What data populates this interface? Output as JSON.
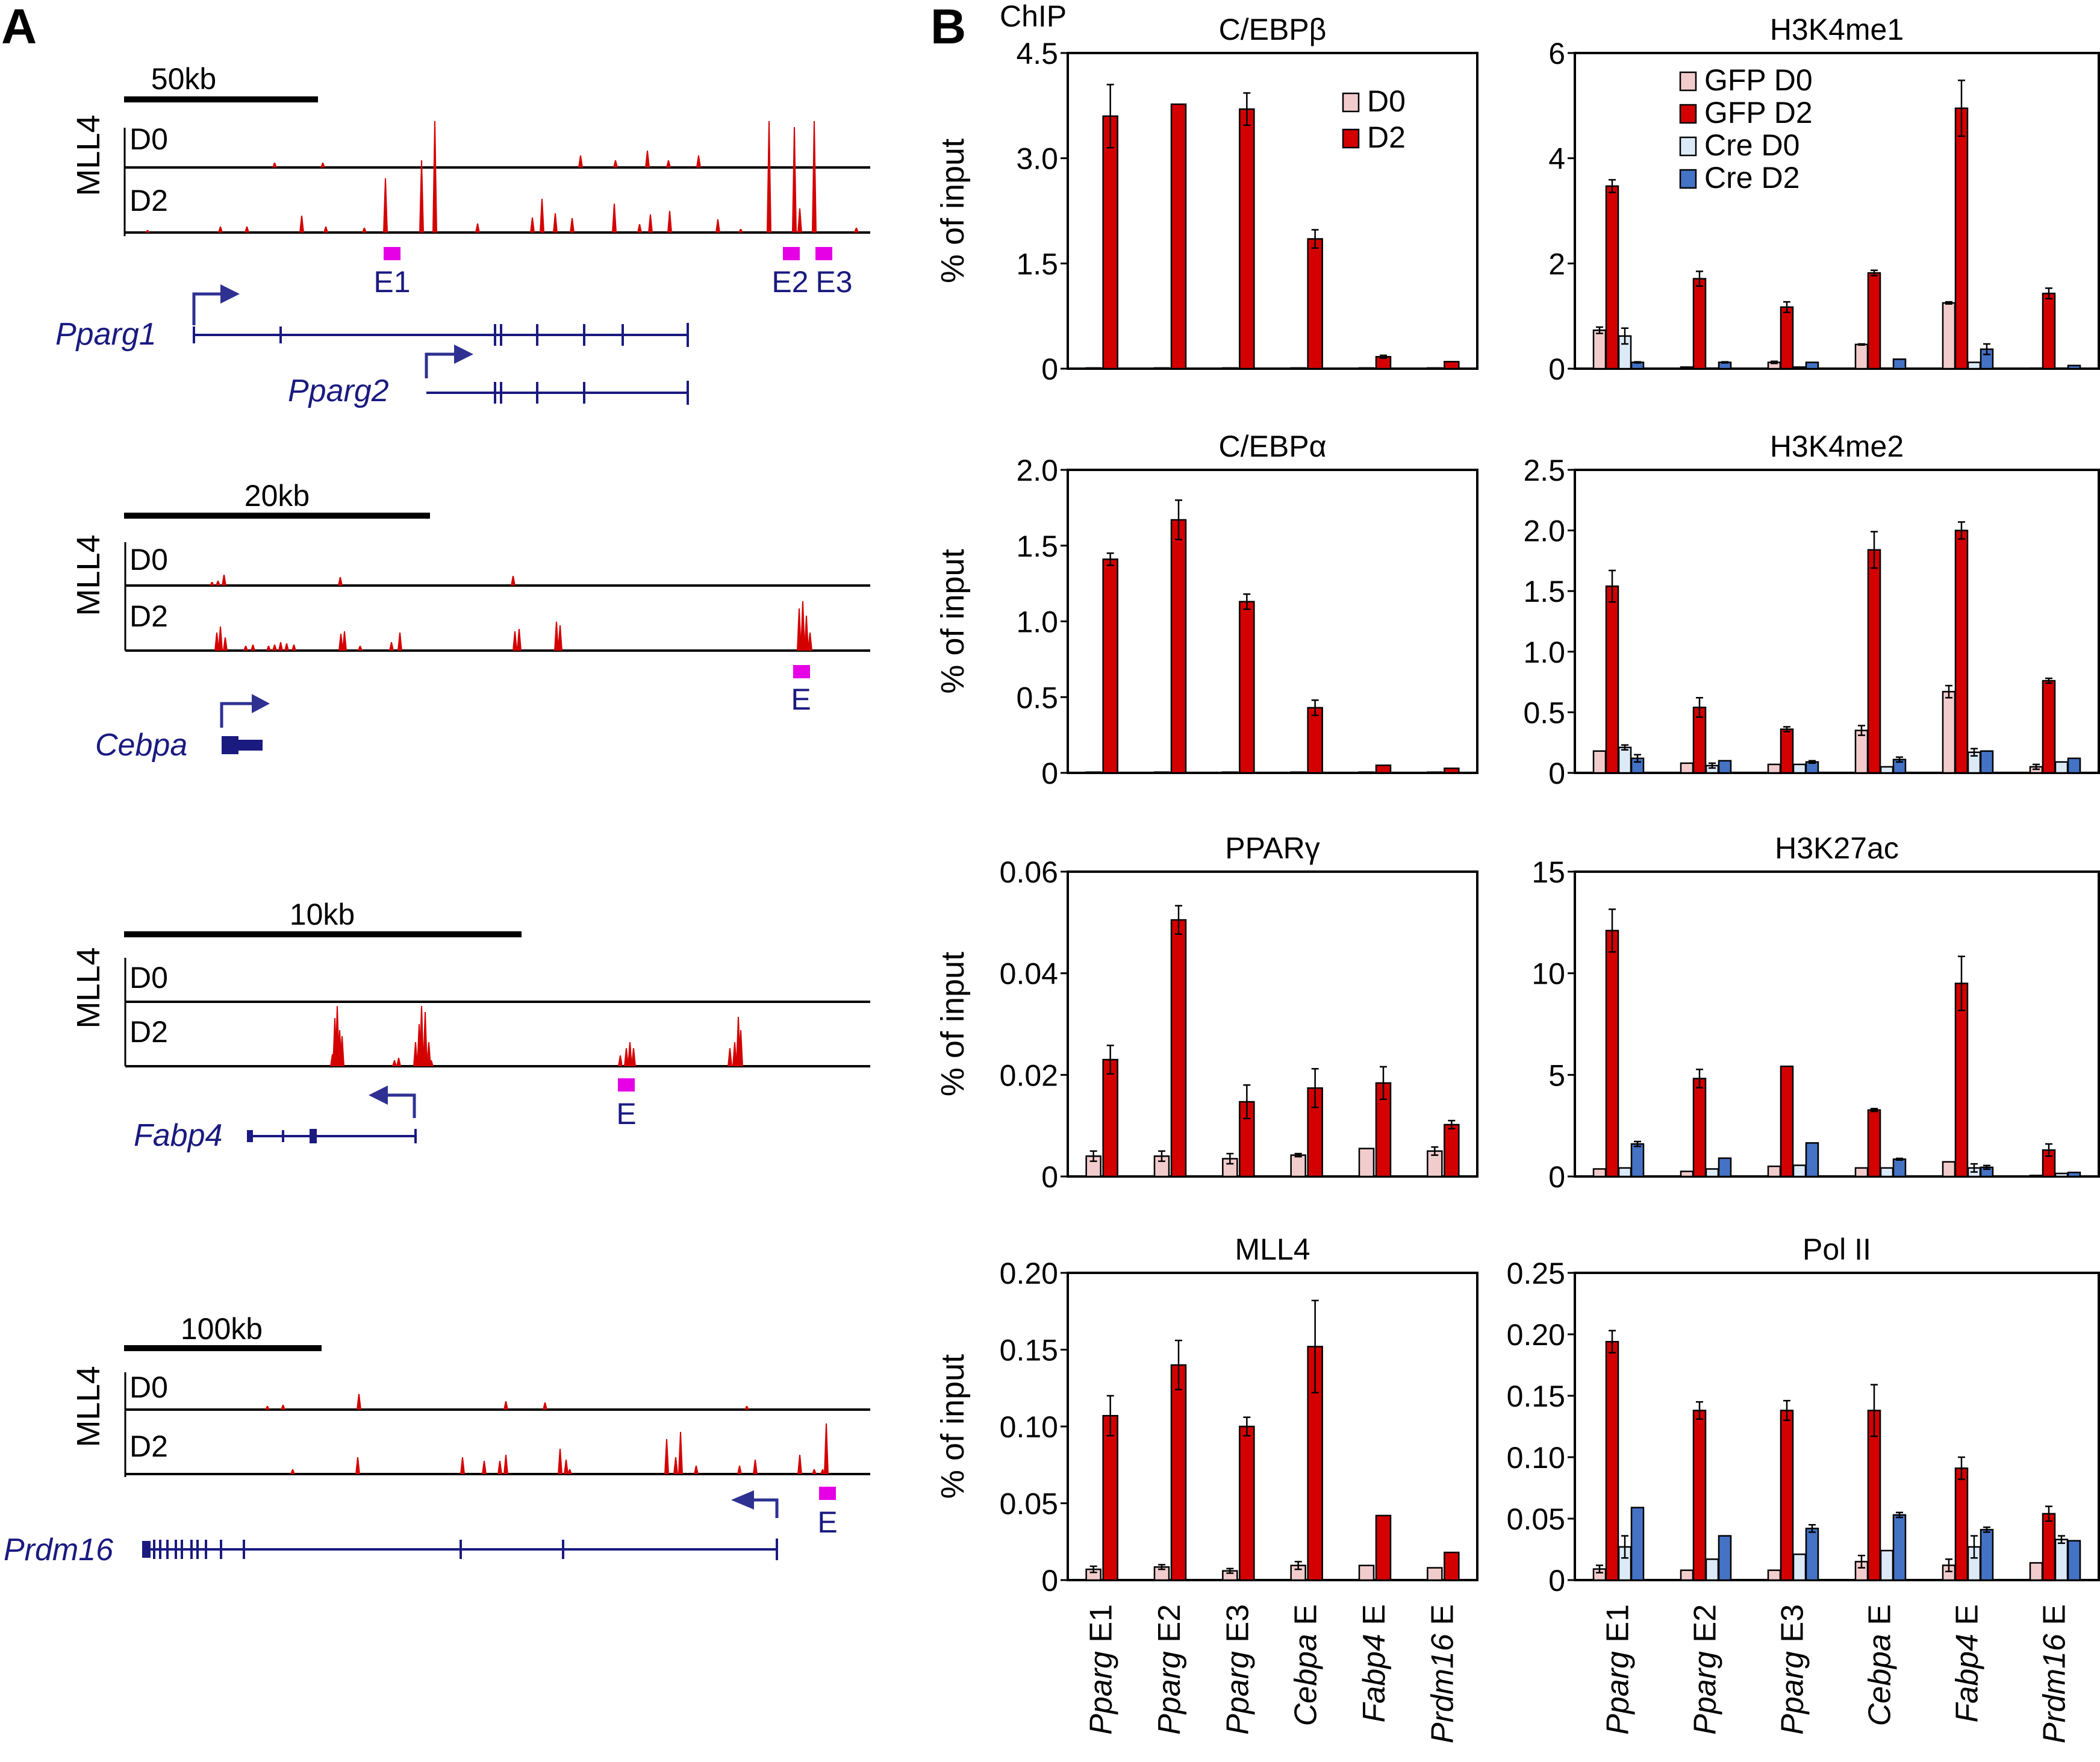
{
  "figure": {
    "panel_a_letter": "A",
    "panel_b_letter": "B",
    "panel_b_header": "ChIP"
  },
  "panel_a": {
    "mark_label": "MLL4",
    "tracks": [
      {
        "locus": "Pparg",
        "scale_label": "50kb",
        "rows": [
          "D0",
          "D2"
        ],
        "enhancers": [
          "E1",
          "E2",
          "E3"
        ],
        "genes": [
          {
            "name": "Pparg1",
            "strand": "+"
          },
          {
            "name": "Pparg2",
            "strand": "+"
          }
        ]
      },
      {
        "locus": "Cebpa",
        "scale_label": "20kb",
        "rows": [
          "D0",
          "D2"
        ],
        "enhancers": [
          "E"
        ],
        "genes": [
          {
            "name": "Cebpa",
            "strand": "+"
          }
        ]
      },
      {
        "locus": "Fabp4",
        "scale_label": "10kb",
        "rows": [
          "D0",
          "D2"
        ],
        "enhancers": [
          "E"
        ],
        "genes": [
          {
            "name": "Fabp4",
            "strand": "-"
          }
        ]
      },
      {
        "locus": "Prdm16",
        "scale_label": "100kb",
        "rows": [
          "D0",
          "D2"
        ],
        "enhancers": [
          "E"
        ],
        "genes": [
          {
            "name": "Prdm16",
            "strand": "-"
          }
        ]
      }
    ],
    "colors": {
      "signal": "#d40000",
      "enhancer": "#e600e6",
      "gene": "#1a1a80",
      "arrow": "#2e3192"
    }
  },
  "chart_data": [
    {
      "type": "bar",
      "title": "C/EBPβ",
      "ylabel": "% of input",
      "ylim": [
        0,
        4.5
      ],
      "yticks": [
        "0",
        "1.5",
        "3.0",
        "4.5"
      ],
      "ytick_values": [
        0,
        1.5,
        3.0,
        4.5
      ],
      "categories": [
        "Pparg E1",
        "Pparg E2",
        "Pparg E3",
        "Cebpa E",
        "Fabp4 E",
        "Prdm16 E"
      ],
      "legend_position": "top-right",
      "series": [
        {
          "name": "D0",
          "color": "#f2cccc",
          "values": [
            0.01,
            0.01,
            0.01,
            0.01,
            0.01,
            0.01
          ],
          "errors": [
            0,
            0,
            0,
            0,
            0,
            0
          ]
        },
        {
          "name": "D2",
          "color": "#d40000",
          "values": [
            3.6,
            3.77,
            3.7,
            1.85,
            0.17,
            0.1
          ],
          "errors": [
            0.45,
            0,
            0.23,
            0.13,
            0.02,
            0
          ]
        }
      ]
    },
    {
      "type": "bar",
      "title": "H3K4me1",
      "ylabel": "",
      "ylim": [
        0,
        6
      ],
      "yticks": [
        "0",
        "2",
        "4",
        "6"
      ],
      "ytick_values": [
        0,
        2,
        4,
        6
      ],
      "categories": [
        "Pparg E1",
        "Pparg E2",
        "Pparg E3",
        "Cebpa E",
        "Fabp4 E",
        "Prdm16 E"
      ],
      "legend_position": "top-center",
      "series": [
        {
          "name": "GFP D0",
          "color": "#f2cccc",
          "values": [
            0.73,
            0.03,
            0.12,
            0.46,
            1.25,
            0.01
          ],
          "errors": [
            0.06,
            0,
            0.02,
            0.01,
            0.02,
            0
          ]
        },
        {
          "name": "GFP D2",
          "color": "#d40000",
          "values": [
            3.47,
            1.71,
            1.17,
            1.82,
            4.95,
            1.43
          ],
          "errors": [
            0.12,
            0.14,
            0.1,
            0.05,
            0.53,
            0.1
          ]
        },
        {
          "name": "Cre D0",
          "color": "#dceaf8",
          "values": [
            0.62,
            0.01,
            0.03,
            0.01,
            0.12,
            0.01
          ],
          "errors": [
            0.15,
            0,
            0,
            0,
            0,
            0
          ]
        },
        {
          "name": "Cre D2",
          "color": "#4472c4",
          "values": [
            0.12,
            0.12,
            0.12,
            0.18,
            0.37,
            0.06
          ],
          "errors": [
            0.01,
            0.01,
            0,
            0,
            0.1,
            0
          ]
        }
      ]
    },
    {
      "type": "bar",
      "title": "C/EBPα",
      "ylabel": "% of input",
      "ylim": [
        0,
        2.0
      ],
      "yticks": [
        "0",
        "0.5",
        "1.0",
        "1.5",
        "2.0"
      ],
      "ytick_values": [
        0,
        0.5,
        1.0,
        1.5,
        2.0
      ],
      "categories": [
        "Pparg E1",
        "Pparg E2",
        "Pparg E3",
        "Cebpa E",
        "Fabp4 E",
        "Prdm16 E"
      ],
      "series": [
        {
          "name": "D0",
          "color": "#f2cccc",
          "values": [
            0.005,
            0.005,
            0.005,
            0.005,
            0.005,
            0.005
          ],
          "errors": [
            0,
            0,
            0,
            0,
            0,
            0
          ]
        },
        {
          "name": "D2",
          "color": "#d40000",
          "values": [
            1.41,
            1.67,
            1.13,
            0.43,
            0.05,
            0.03
          ],
          "errors": [
            0.04,
            0.13,
            0.05,
            0.05,
            0,
            0
          ]
        }
      ]
    },
    {
      "type": "bar",
      "title": "H3K4me2",
      "ylabel": "",
      "ylim": [
        0,
        2.5
      ],
      "yticks": [
        "0",
        "0.5",
        "1.0",
        "1.5",
        "2.0",
        "2.5"
      ],
      "ytick_values": [
        0,
        0.5,
        1.0,
        1.5,
        2.0,
        2.5
      ],
      "categories": [
        "Pparg E1",
        "Pparg E2",
        "Pparg E3",
        "Cebpa E",
        "Fabp4 E",
        "Prdm16 E"
      ],
      "series": [
        {
          "name": "GFP D0",
          "color": "#f2cccc",
          "values": [
            0.18,
            0.08,
            0.07,
            0.35,
            0.67,
            0.05
          ],
          "errors": [
            0,
            0,
            0,
            0.04,
            0.05,
            0.02
          ]
        },
        {
          "name": "GFP D2",
          "color": "#d40000",
          "values": [
            1.54,
            0.54,
            0.36,
            1.84,
            2.0,
            0.76
          ],
          "errors": [
            0.13,
            0.08,
            0.02,
            0.15,
            0.07,
            0.02
          ]
        },
        {
          "name": "Cre D0",
          "color": "#dceaf8",
          "values": [
            0.21,
            0.06,
            0.07,
            0.05,
            0.17,
            0.09
          ],
          "errors": [
            0.02,
            0.02,
            0,
            0,
            0.03,
            0
          ]
        },
        {
          "name": "Cre D2",
          "color": "#4472c4",
          "values": [
            0.12,
            0.1,
            0.09,
            0.11,
            0.18,
            0.12
          ],
          "errors": [
            0.03,
            0,
            0.01,
            0.02,
            0,
            0
          ]
        }
      ]
    },
    {
      "type": "bar",
      "title": "PPARγ",
      "ylabel": "% of input",
      "ylim": [
        0,
        0.06
      ],
      "yticks": [
        "0",
        "0.02",
        "0.04",
        "0.06"
      ],
      "ytick_values": [
        0,
        0.02,
        0.04,
        0.06
      ],
      "categories": [
        "Pparg E1",
        "Pparg E2",
        "Pparg E3",
        "Cebpa E",
        "Fabp4 E",
        "Prdm16 E"
      ],
      "series": [
        {
          "name": "D0",
          "color": "#f2cccc",
          "values": [
            0.004,
            0.004,
            0.0035,
            0.0042,
            0.0055,
            0.005
          ],
          "errors": [
            0.001,
            0.001,
            0.001,
            0.0003,
            0,
            0.0008
          ]
        },
        {
          "name": "D2",
          "color": "#d40000",
          "values": [
            0.023,
            0.0505,
            0.0147,
            0.0174,
            0.0184,
            0.0102
          ],
          "errors": [
            0.0028,
            0.0028,
            0.0033,
            0.0038,
            0.0032,
            0.0008
          ]
        }
      ]
    },
    {
      "type": "bar",
      "title": "H3K27ac",
      "ylabel": "",
      "ylim": [
        0,
        15
      ],
      "yticks": [
        "0",
        "5",
        "10",
        "15"
      ],
      "ytick_values": [
        0,
        5,
        10,
        15
      ],
      "categories": [
        "Pparg E1",
        "Pparg E2",
        "Pparg E3",
        "Cebpa E",
        "Fabp4 E",
        "Prdm16 E"
      ],
      "series": [
        {
          "name": "GFP D0",
          "color": "#f2cccc",
          "values": [
            0.37,
            0.25,
            0.5,
            0.42,
            0.72,
            0.05
          ],
          "errors": [
            0,
            0,
            0,
            0,
            0,
            0
          ]
        },
        {
          "name": "GFP D2",
          "color": "#d40000",
          "values": [
            12.1,
            4.82,
            5.42,
            3.27,
            9.5,
            1.3
          ],
          "errors": [
            1.05,
            0.45,
            0,
            0.07,
            1.33,
            0.3
          ]
        },
        {
          "name": "Cre D0",
          "color": "#dceaf8",
          "values": [
            0.42,
            0.37,
            0.55,
            0.42,
            0.42,
            0.15
          ],
          "errors": [
            0,
            0,
            0,
            0,
            0.2,
            0
          ]
        },
        {
          "name": "Cre D2",
          "color": "#4472c4",
          "values": [
            1.6,
            0.9,
            1.65,
            0.85,
            0.45,
            0.2
          ],
          "errors": [
            0.12,
            0,
            0,
            0.04,
            0.09,
            0
          ]
        }
      ]
    },
    {
      "type": "bar",
      "title": "MLL4",
      "ylabel": "% of input",
      "ylim": [
        0,
        0.2
      ],
      "yticks": [
        "0",
        "0.05",
        "0.10",
        "0.15",
        "0.20"
      ],
      "ytick_values": [
        0,
        0.05,
        0.1,
        0.15,
        0.2
      ],
      "categories": [
        "Pparg E1",
        "Pparg E2",
        "Pparg E3",
        "Cebpa E",
        "Fabp4 E",
        "Prdm16 E"
      ],
      "series": [
        {
          "name": "D0",
          "color": "#f2cccc",
          "values": [
            0.007,
            0.0085,
            0.006,
            0.0095,
            0.0095,
            0.008
          ],
          "errors": [
            0.002,
            0.0015,
            0.0015,
            0.0025,
            0,
            0
          ]
        },
        {
          "name": "D2",
          "color": "#d40000",
          "values": [
            0.107,
            0.14,
            0.1,
            0.152,
            0.042,
            0.018
          ],
          "errors": [
            0.013,
            0.016,
            0.006,
            0.03,
            0,
            0
          ]
        }
      ]
    },
    {
      "type": "bar",
      "title": "Pol II",
      "ylabel": "",
      "ylim": [
        0,
        0.25
      ],
      "yticks": [
        "0",
        "0.05",
        "0.10",
        "0.15",
        "0.20",
        "0.25"
      ],
      "ytick_values": [
        0,
        0.05,
        0.1,
        0.15,
        0.2,
        0.25
      ],
      "categories": [
        "Pparg E1",
        "Pparg E2",
        "Pparg E3",
        "Cebpa E",
        "Fabp4 E",
        "Prdm16 E"
      ],
      "series": [
        {
          "name": "GFP D0",
          "color": "#f2cccc",
          "values": [
            0.009,
            0.008,
            0.008,
            0.015,
            0.012,
            0.014
          ],
          "errors": [
            0.003,
            0,
            0,
            0.005,
            0.005,
            0
          ]
        },
        {
          "name": "GFP D2",
          "color": "#d40000",
          "values": [
            0.194,
            0.138,
            0.138,
            0.138,
            0.091,
            0.054
          ],
          "errors": [
            0.009,
            0.007,
            0.008,
            0.021,
            0.009,
            0.006
          ]
        },
        {
          "name": "Cre D0",
          "color": "#dceaf8",
          "values": [
            0.027,
            0.017,
            0.021,
            0.024,
            0.027,
            0.033
          ],
          "errors": [
            0.009,
            0,
            0,
            0,
            0.009,
            0.003
          ]
        },
        {
          "name": "Cre D2",
          "color": "#4472c4",
          "values": [
            0.059,
            0.036,
            0.042,
            0.053,
            0.041,
            0.032
          ],
          "errors": [
            0,
            0,
            0.003,
            0.002,
            0.002,
            0
          ]
        }
      ]
    }
  ]
}
